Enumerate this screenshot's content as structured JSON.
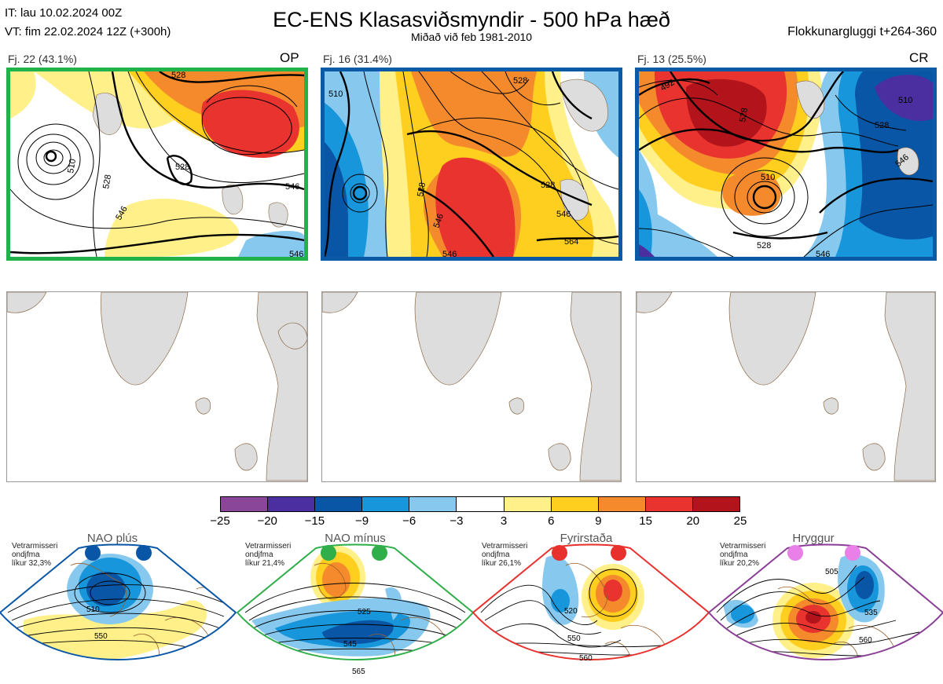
{
  "header": {
    "it_line": "IT: lau 10.02.2024 00Z",
    "vt_line": "VT: fim 22.02.2024 12Z  (+300h)",
    "title": "EC-ENS Klasasviðsmyndir - 500 hPa hæð",
    "subtitle": "Miðað við feb 1981-2010",
    "window": "Flokkunargluggi t+264-360"
  },
  "clusters": [
    {
      "label": "Fj. 22 (43.1%)",
      "tag": "OP",
      "border_color": "#22b24c",
      "contour_labels": [
        "528",
        "528",
        "546",
        "510",
        "528",
        "546",
        "546"
      ]
    },
    {
      "label": "Fj. 16 (31.4%)",
      "tag": "",
      "border_color": "#0a5aa6",
      "contour_labels": [
        "510",
        "528",
        "528",
        "546",
        "564",
        "546",
        "528",
        "546"
      ]
    },
    {
      "label": "Fj. 13 (25.5%)",
      "tag": "CR",
      "border_color": "#0a5aa6",
      "contour_labels": [
        "510",
        "528",
        "510",
        "528",
        "546",
        "528",
        "546",
        "492"
      ]
    }
  ],
  "colorbar": {
    "ticks": [
      "−25",
      "−20",
      "−15",
      "−9",
      "−6",
      "−3",
      "3",
      "6",
      "9",
      "15",
      "20",
      "25"
    ],
    "colors": [
      "#8a4799",
      "#4b2fa0",
      "#0a56a6",
      "#1796dc",
      "#86c8ee",
      "#ffffff",
      "#fff08a",
      "#ffcf20",
      "#f48a2c",
      "#e8332e",
      "#b3141b"
    ]
  },
  "regimes": [
    {
      "name": "NAO plús",
      "note": [
        "Vetrarmisseri",
        "ondjfma",
        "líkur 32,3%"
      ],
      "color": "#0a56a6",
      "dot_color": "#0a56a6",
      "contour_labels": [
        "510",
        "550"
      ]
    },
    {
      "name": "NAO mínus",
      "note": [
        "Vetrarmisseri",
        "ondjfma",
        "líkur 21,4%"
      ],
      "color": "#2fae4a",
      "dot_color": "#2fae4a",
      "contour_labels": [
        "525",
        "545",
        "565"
      ]
    },
    {
      "name": "Fyrirstaða",
      "note": [
        "Vetrarmisseri",
        "ondjfma",
        "líkur 26,1%"
      ],
      "color": "#e8312d",
      "dot_color": "#e8312d",
      "contour_labels": [
        "520",
        "550",
        "560"
      ]
    },
    {
      "name": "Hryggur",
      "note": [
        "Vetrarmisseri",
        "ondjfma",
        "líkur 20,2%"
      ],
      "color": "#8a3d96",
      "dot_color": "#e880e8",
      "contour_labels": [
        "505",
        "535",
        "560"
      ]
    }
  ]
}
